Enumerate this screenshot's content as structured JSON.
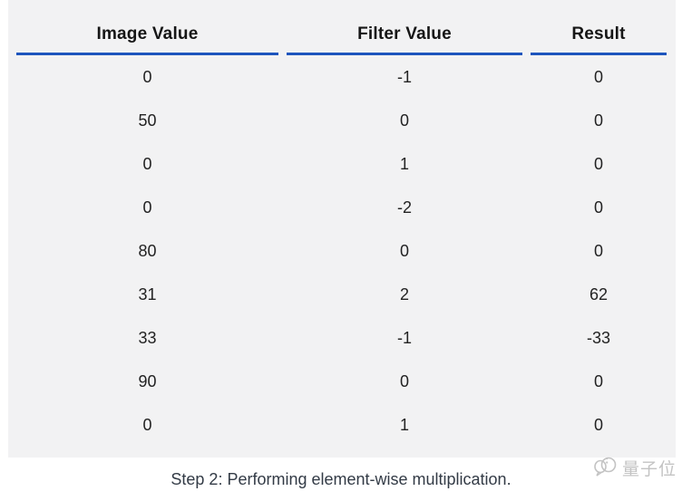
{
  "chart_data": {
    "type": "table",
    "title": "",
    "columns": [
      "Image Value",
      "Filter Value",
      "Result"
    ],
    "rows": [
      [
        0,
        -1,
        0
      ],
      [
        50,
        0,
        0
      ],
      [
        0,
        1,
        0
      ],
      [
        0,
        -2,
        0
      ],
      [
        80,
        0,
        0
      ],
      [
        31,
        2,
        62
      ],
      [
        33,
        -1,
        -33
      ],
      [
        90,
        0,
        0
      ],
      [
        0,
        1,
        0
      ]
    ],
    "caption": "Step 2: Performing element-wise multiplication."
  },
  "watermark": {
    "text": "量子位",
    "icon": "qbitai-logo-icon"
  },
  "colors": {
    "panel_bg": "#f2f2f3",
    "header_underline": "#1d55bd",
    "table_text": "#222222",
    "header_text": "#161616",
    "caption_text": "#333b46",
    "watermark": "#c3c3c3"
  }
}
